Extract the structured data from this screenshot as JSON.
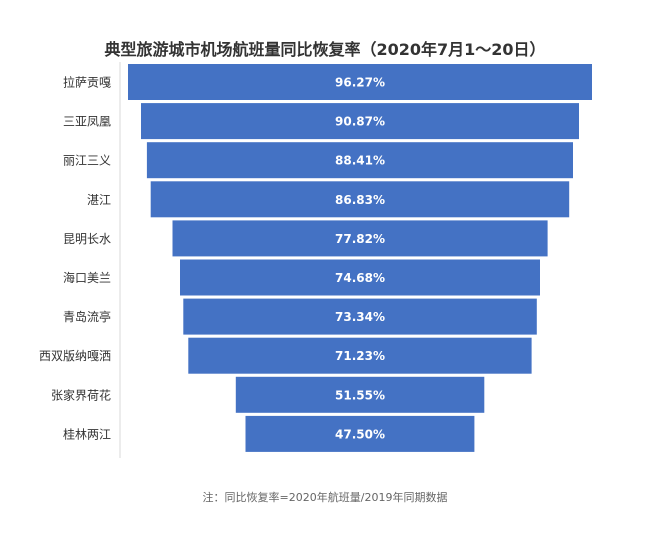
{
  "chart_data": {
    "type": "bar",
    "title": "典型旅游城市机场航班量同比恢复率（2020年7月1～20日）",
    "categories": [
      "拉萨贡嘎",
      "三亚凤凰",
      "丽江三义",
      "湛江",
      "昆明长水",
      "海口美兰",
      "青岛流亭",
      "西双版纳嘎洒",
      "张家界荷花",
      "桂林两江"
    ],
    "values": [
      96.27,
      90.87,
      88.41,
      86.83,
      77.82,
      74.68,
      73.34,
      71.23,
      51.55,
      47.5
    ],
    "value_labels": [
      "96.27%",
      "90.87%",
      "88.41%",
      "86.83%",
      "77.82%",
      "74.68%",
      "73.34%",
      "71.23%",
      "51.55%",
      "47.50%"
    ],
    "bar_color": "#4472c4",
    "note": "注：同比恢复率=2020年航班量/2019年同期数据"
  }
}
